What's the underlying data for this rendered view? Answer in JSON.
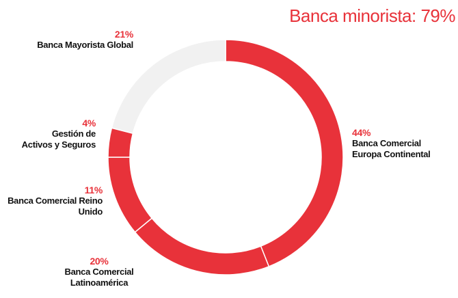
{
  "chart_data": {
    "type": "donut",
    "title": "Banca minorista: 79%",
    "categories": [
      "Banca Comercial Europa Continental",
      "Banca Comercial Latinoamérica",
      "Banca Comercial Reino Unido",
      "Gestión de Activos y Seguros",
      "Banca Mayorista Global"
    ],
    "values": [
      44,
      20,
      11,
      4,
      21
    ],
    "value_labels": [
      "44%",
      "20%",
      "11%",
      "4%",
      "21%"
    ],
    "colors": [
      "#e8323a",
      "#e8323a",
      "#e8323a",
      "#e8323a",
      "#f1f1f1"
    ]
  }
}
